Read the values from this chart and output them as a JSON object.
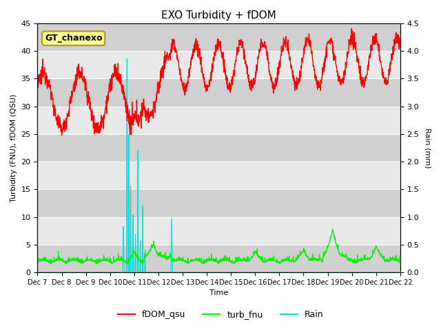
{
  "title": "EXO Turbidity + fDOM",
  "ylabel_left": "Turbidity (FNU), fDOM (QSU)",
  "ylabel_right": "Rain (mm)",
  "xlabel": "Time",
  "annotation": "GT_chanexo",
  "ylim_left": [
    0,
    45
  ],
  "ylim_right": [
    0,
    4.5
  ],
  "yticks_left": [
    0,
    5,
    10,
    15,
    20,
    25,
    30,
    35,
    40,
    45
  ],
  "yticks_right": [
    0.0,
    0.5,
    1.0,
    1.5,
    2.0,
    2.5,
    3.0,
    3.5,
    4.0,
    4.5
  ],
  "x_labels": [
    "Dec 7",
    "Dec 8",
    "Dec 9",
    "Dec 10",
    "Dec 11",
    "Dec 12",
    "Dec 13",
    "Dec 14",
    "Dec 15",
    "Dec 16",
    "Dec 17",
    "Dec 18",
    "Dec 19",
    "Dec 20",
    "Dec 21",
    "Dec 22"
  ],
  "fdom_color": "#ff0000",
  "turb_color": "#00ee00",
  "rain_color": "#00dddd",
  "legend_fdom": "fDOM_qsu",
  "legend_turb": "turb_fnu",
  "legend_rain": "Rain",
  "bg_color": "#ffffff",
  "plot_bg_light": "#e8e8e8",
  "plot_bg_dark": "#d0d0d0",
  "grid_color": "#ffffff",
  "annotation_bg": "#ffff99",
  "annotation_border": "#b8960c"
}
